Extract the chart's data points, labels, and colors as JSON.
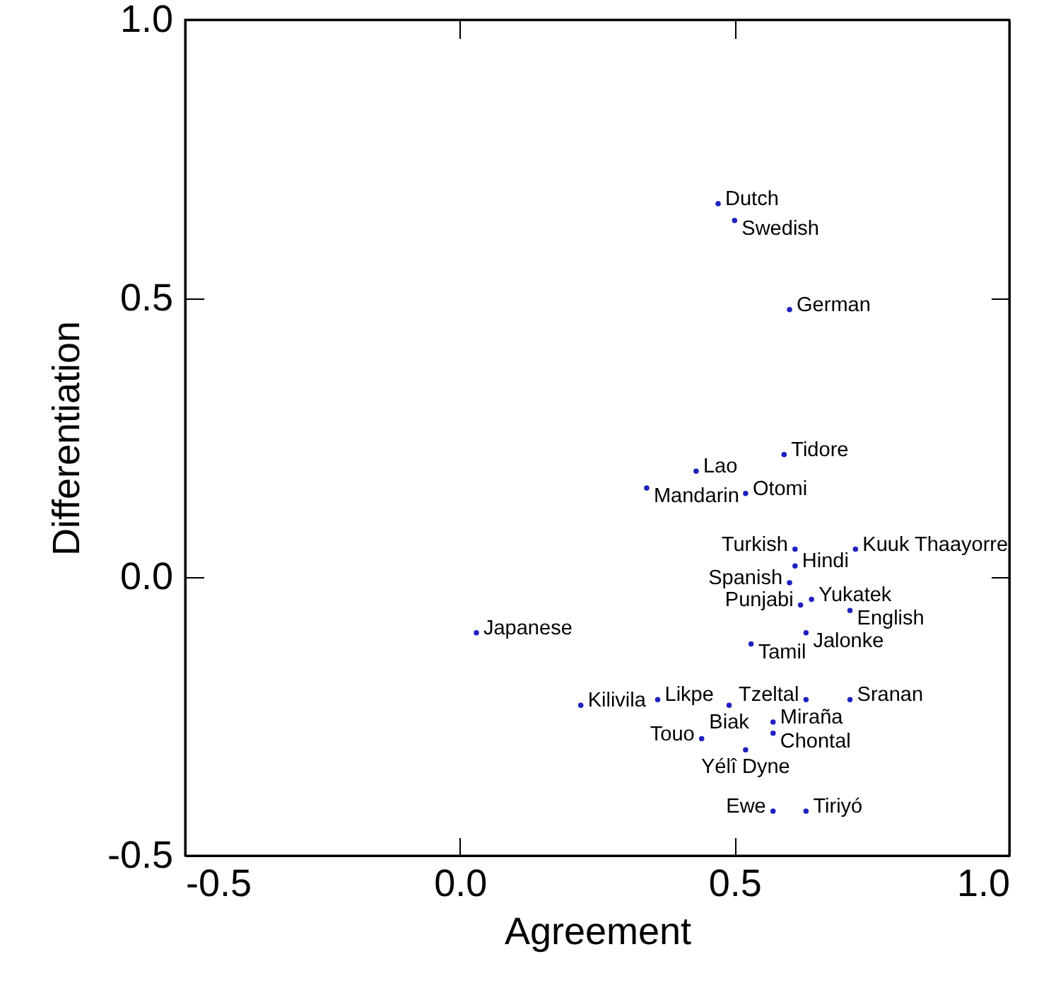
{
  "chart_data": {
    "type": "scatter",
    "xlabel": "Agreement",
    "ylabel": "Differentiation",
    "xlim": [
      -0.5,
      1.0
    ],
    "ylim": [
      -0.5,
      1.0
    ],
    "xticks": [
      {
        "value": -0.5,
        "label": "-0.5"
      },
      {
        "value": 0,
        "label": "0.0"
      },
      {
        "value": 0.5,
        "label": "0.5"
      },
      {
        "value": 1,
        "label": "1.0"
      }
    ],
    "yticks": [
      {
        "value": -0.5,
        "label": "-0.5"
      },
      {
        "value": 0,
        "label": "0.0"
      },
      {
        "value": 0.5,
        "label": "0.5"
      },
      {
        "value": 1,
        "label": "1.0"
      }
    ],
    "grid": false,
    "marker": "circle",
    "series": [
      {
        "name": "Dutch",
        "color": "#2020c0",
        "x": [
          0.47
        ],
        "values": [
          0.67
        ]
      },
      {
        "name": "Swedish",
        "color": "#2020c0",
        "x": [
          0.5
        ],
        "values": [
          0.64
        ]
      },
      {
        "name": "German",
        "color": "#2020c0",
        "x": [
          0.6
        ],
        "values": [
          0.48
        ]
      },
      {
        "name": "Tidore",
        "color": "#2020c0",
        "x": [
          0.59
        ],
        "values": [
          0.22
        ]
      },
      {
        "name": "Lao",
        "color": "#2020c0",
        "x": [
          0.43
        ],
        "values": [
          0.19
        ]
      },
      {
        "name": "Mandarin",
        "color": "#2020c0",
        "x": [
          0.34
        ],
        "values": [
          0.16
        ]
      },
      {
        "name": "Otomi",
        "color": "#2020c0",
        "x": [
          0.52
        ],
        "values": [
          0.15
        ]
      },
      {
        "name": "Turkish",
        "color": "#2020c0",
        "x": [
          0.61
        ],
        "values": [
          0.05
        ]
      },
      {
        "name": "Kuuk Thaayorre",
        "color": "#2020c0",
        "x": [
          0.72
        ],
        "values": [
          0.05
        ]
      },
      {
        "name": "Hindi",
        "color": "#2020c0",
        "x": [
          0.61
        ],
        "values": [
          0.02
        ]
      },
      {
        "name": "Spanish",
        "color": "#2020c0",
        "x": [
          0.6
        ],
        "values": [
          -0.01
        ]
      },
      {
        "name": "Yukatek",
        "color": "#2020c0",
        "x": [
          0.64
        ],
        "values": [
          -0.04
        ]
      },
      {
        "name": "Punjabi",
        "color": "#2020c0",
        "x": [
          0.62
        ],
        "values": [
          -0.05
        ]
      },
      {
        "name": "English",
        "color": "#2020c0",
        "x": [
          0.71
        ],
        "values": [
          -0.06
        ]
      },
      {
        "name": "Japanese",
        "color": "#2020c0",
        "x": [
          0.03
        ],
        "values": [
          -0.1
        ]
      },
      {
        "name": "Jalonke",
        "color": "#2020c0",
        "x": [
          0.63
        ],
        "values": [
          -0.1
        ]
      },
      {
        "name": "Tamil",
        "color": "#2020c0",
        "x": [
          0.53
        ],
        "values": [
          -0.12
        ]
      },
      {
        "name": "Likpe",
        "color": "#2020c0",
        "x": [
          0.36
        ],
        "values": [
          -0.22
        ]
      },
      {
        "name": "Kilivila",
        "color": "#2020c0",
        "x": [
          0.22
        ],
        "values": [
          -0.23
        ]
      },
      {
        "name": "Biak",
        "color": "#2020c0",
        "x": [
          0.49
        ],
        "values": [
          -0.23
        ]
      },
      {
        "name": "Tzeltal",
        "color": "#2020c0",
        "x": [
          0.63
        ],
        "values": [
          -0.22
        ]
      },
      {
        "name": "Sranan",
        "color": "#2020c0",
        "x": [
          0.71
        ],
        "values": [
          -0.22
        ]
      },
      {
        "name": "Miraña",
        "color": "#2020c0",
        "x": [
          0.57
        ],
        "values": [
          -0.26
        ]
      },
      {
        "name": "Chontal",
        "color": "#2020c0",
        "x": [
          0.57
        ],
        "values": [
          -0.28
        ]
      },
      {
        "name": "Touo",
        "color": "#2020c0",
        "x": [
          0.44
        ],
        "values": [
          -0.29
        ]
      },
      {
        "name": "Yélî Dyne",
        "color": "#2020c0",
        "x": [
          0.52
        ],
        "values": [
          -0.31
        ]
      },
      {
        "name": "Ewe",
        "color": "#2020c0",
        "x": [
          0.57
        ],
        "values": [
          -0.42
        ]
      },
      {
        "name": "Tiriyó",
        "color": "#2020c0",
        "x": [
          0.63
        ],
        "values": [
          -0.42
        ]
      }
    ]
  }
}
